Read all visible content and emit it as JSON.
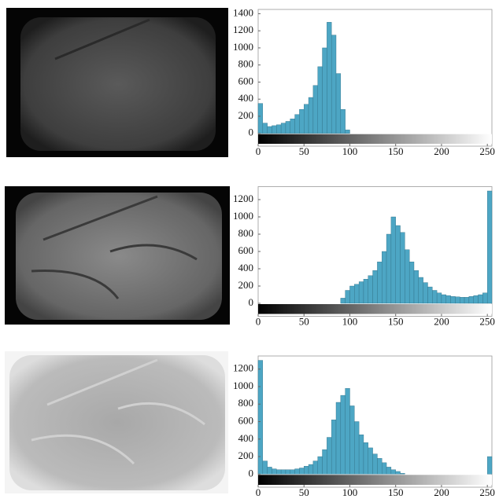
{
  "chart_data": [
    {
      "type": "histogram",
      "color": "#4da6c4",
      "bins": [
        0,
        5,
        10,
        15,
        20,
        25,
        30,
        35,
        40,
        45,
        50,
        55,
        60,
        65,
        70,
        75,
        80,
        85,
        90,
        95,
        100,
        105,
        110,
        115,
        120,
        125,
        130,
        135,
        140,
        145,
        150,
        155,
        160,
        165,
        170,
        175,
        180,
        185,
        190,
        195,
        200,
        205,
        210,
        215,
        220,
        225,
        230,
        235,
        240,
        245,
        250,
        255
      ],
      "counts": [
        350,
        120,
        80,
        90,
        100,
        120,
        140,
        170,
        220,
        280,
        340,
        420,
        560,
        780,
        1000,
        1300,
        1150,
        700,
        280,
        40,
        0,
        0,
        0,
        0,
        0,
        0,
        0,
        0,
        0,
        0,
        0,
        0,
        0,
        0,
        0,
        0,
        0,
        0,
        0,
        0,
        0,
        0,
        0,
        0,
        0,
        0,
        0,
        0,
        0,
        0,
        0
      ],
      "xlim": [
        0,
        255
      ],
      "ylim": [
        -150,
        1450
      ],
      "xticks": [
        0,
        50,
        100,
        150,
        200,
        250
      ],
      "yticks": [
        0,
        200,
        400,
        600,
        800,
        1000,
        1200,
        1400
      ]
    },
    {
      "type": "histogram",
      "color": "#4da6c4",
      "bins": [
        0,
        5,
        10,
        15,
        20,
        25,
        30,
        35,
        40,
        45,
        50,
        55,
        60,
        65,
        70,
        75,
        80,
        85,
        90,
        95,
        100,
        105,
        110,
        115,
        120,
        125,
        130,
        135,
        140,
        145,
        150,
        155,
        160,
        165,
        170,
        175,
        180,
        185,
        190,
        195,
        200,
        205,
        210,
        215,
        220,
        225,
        230,
        235,
        240,
        245,
        250,
        255
      ],
      "counts": [
        0,
        0,
        0,
        0,
        0,
        0,
        0,
        0,
        0,
        0,
        0,
        0,
        0,
        0,
        0,
        0,
        0,
        0,
        60,
        150,
        200,
        220,
        250,
        280,
        320,
        380,
        480,
        600,
        800,
        1000,
        900,
        820,
        620,
        480,
        380,
        300,
        240,
        190,
        150,
        120,
        100,
        90,
        80,
        75,
        70,
        70,
        80,
        90,
        100,
        120,
        1300
      ],
      "xlim": [
        0,
        255
      ],
      "ylim": [
        -150,
        1350
      ],
      "xticks": [
        0,
        50,
        100,
        150,
        200,
        250
      ],
      "yticks": [
        0,
        200,
        400,
        600,
        800,
        1000,
        1200
      ]
    },
    {
      "type": "histogram",
      "color": "#4da6c4",
      "bins": [
        0,
        5,
        10,
        15,
        20,
        25,
        30,
        35,
        40,
        45,
        50,
        55,
        60,
        65,
        70,
        75,
        80,
        85,
        90,
        95,
        100,
        105,
        110,
        115,
        120,
        125,
        130,
        135,
        140,
        145,
        150,
        155,
        160,
        165,
        170,
        175,
        180,
        185,
        190,
        195,
        200,
        205,
        210,
        215,
        220,
        225,
        230,
        235,
        240,
        245,
        250,
        255
      ],
      "counts": [
        1300,
        150,
        80,
        60,
        50,
        50,
        50,
        50,
        60,
        70,
        90,
        110,
        150,
        200,
        280,
        420,
        620,
        820,
        900,
        980,
        780,
        600,
        450,
        360,
        300,
        230,
        180,
        130,
        80,
        50,
        30,
        10,
        0,
        0,
        0,
        0,
        0,
        0,
        0,
        0,
        0,
        0,
        0,
        0,
        0,
        0,
        0,
        0,
        0,
        0,
        200
      ],
      "xlim": [
        0,
        255
      ],
      "ylim": [
        -150,
        1350
      ],
      "xticks": [
        0,
        50,
        100,
        150,
        200,
        250
      ],
      "yticks": [
        0,
        200,
        400,
        600,
        800,
        1000,
        1200
      ]
    }
  ]
}
